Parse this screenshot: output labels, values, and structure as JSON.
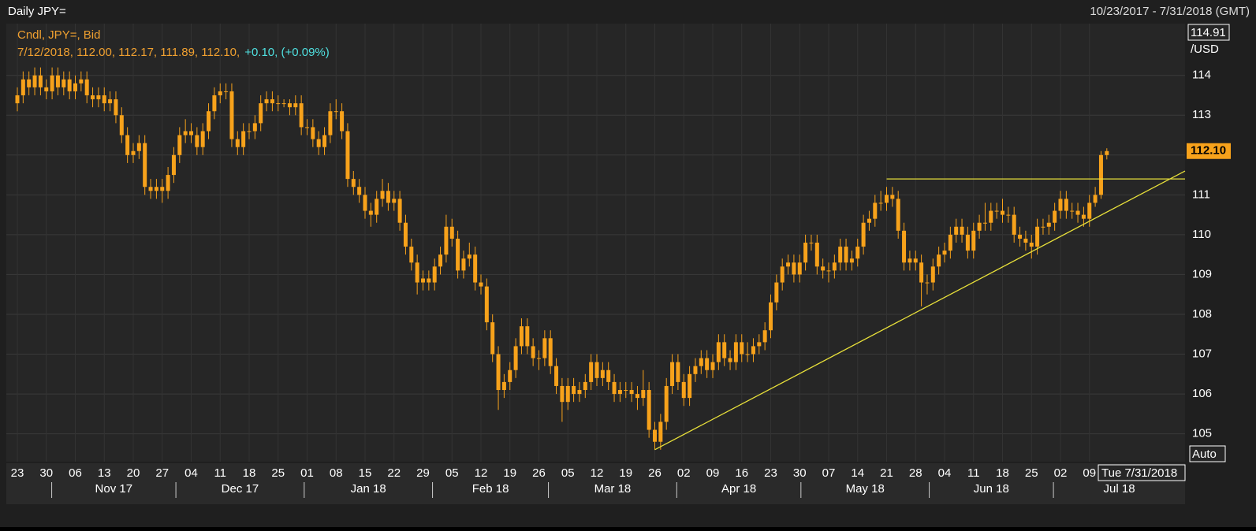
{
  "chart_data": {
    "type": "candlestick",
    "title": "Daily JPY=",
    "date_range": "10/23/2017 - 7/31/2018 (GMT)",
    "legend_title": "Cndl, JPY=, Bid",
    "legend_values": "7/12/2018, 112.00, 112.17, 111.89, 112.10,",
    "legend_change": "+0.10, (+0.09%)",
    "axis_top_label": "114.91",
    "axis_unit": "/USD",
    "last_price_label": "112.10",
    "scale_mode": "Auto",
    "cursor_date": "Tue 7/31/2018",
    "color": "#f7a21b",
    "ylim": [
      104.3,
      115.3
    ],
    "yticks": [
      105,
      106,
      107,
      108,
      109,
      110,
      111,
      112,
      113,
      114
    ],
    "grid": true,
    "categories": [
      "23",
      null,
      null,
      null,
      null,
      "30",
      null,
      null,
      null,
      null,
      "06",
      null,
      null,
      null,
      null,
      "13",
      null,
      null,
      null,
      null,
      "20",
      null,
      null,
      null,
      null,
      "27",
      null,
      null,
      null,
      null,
      "04",
      null,
      null,
      null,
      null,
      "11",
      null,
      null,
      null,
      null,
      "18",
      null,
      null,
      null,
      null,
      "25",
      null,
      null,
      null,
      null,
      "01",
      null,
      null,
      null,
      null,
      "08",
      null,
      null,
      null,
      null,
      "15",
      null,
      null,
      null,
      null,
      "22",
      null,
      null,
      null,
      null,
      "29",
      null,
      null,
      null,
      null,
      "05",
      null,
      null,
      null,
      null,
      "12",
      null,
      null,
      null,
      null,
      "19",
      null,
      null,
      null,
      null,
      "26",
      null,
      null,
      null,
      null,
      "05",
      null,
      null,
      null,
      null,
      "12",
      null,
      null,
      null,
      null,
      "19",
      null,
      null,
      null,
      null,
      "26",
      null,
      null,
      null,
      null,
      "02",
      null,
      null,
      null,
      null,
      "09",
      null,
      null,
      null,
      null,
      "16",
      null,
      null,
      null,
      null,
      "23",
      null,
      null,
      null,
      null,
      "30",
      null,
      null,
      null,
      null,
      "07",
      null,
      null,
      null,
      null,
      "14",
      null,
      null,
      null,
      null,
      "21",
      null,
      null,
      null,
      null,
      "28",
      null,
      null,
      null,
      null,
      "04",
      null,
      null,
      null,
      null,
      "11",
      null,
      null,
      null,
      null,
      "18",
      null,
      null,
      null,
      null,
      "25",
      null,
      null,
      null,
      null,
      "02",
      null,
      null,
      null,
      null,
      "09",
      null,
      null,
      null
    ],
    "months": [
      "Nov 17",
      "Dec 17",
      "Jan 18",
      "Feb 18",
      "Mar 18",
      "Apr 18",
      "May 18",
      "Jun 18",
      "Jul 18"
    ],
    "candles": [
      [
        113.3,
        113.7,
        113.1,
        113.5
      ],
      [
        113.5,
        114.1,
        113.3,
        113.9
      ],
      [
        113.9,
        114.1,
        113.5,
        113.7
      ],
      [
        113.7,
        114.2,
        113.5,
        114.0
      ],
      [
        114.0,
        114.2,
        113.5,
        113.7
      ],
      [
        113.7,
        113.9,
        113.4,
        113.6
      ],
      [
        113.6,
        114.2,
        113.4,
        114.0
      ],
      [
        114.0,
        114.2,
        113.5,
        113.7
      ],
      [
        113.7,
        114.1,
        113.5,
        113.9
      ],
      [
        113.9,
        114.1,
        113.4,
        113.6
      ],
      [
        113.6,
        114.0,
        113.4,
        113.8
      ],
      [
        113.8,
        114.1,
        113.6,
        113.9
      ],
      [
        113.9,
        114.1,
        113.3,
        113.5
      ],
      [
        113.5,
        113.7,
        113.2,
        113.4
      ],
      [
        113.4,
        113.7,
        113.2,
        113.5
      ],
      [
        113.5,
        113.7,
        113.1,
        113.3
      ],
      [
        113.3,
        113.6,
        113.1,
        113.4
      ],
      [
        113.4,
        113.6,
        112.8,
        113.0
      ],
      [
        113.0,
        113.2,
        112.3,
        112.5
      ],
      [
        112.5,
        112.7,
        111.8,
        112.0
      ],
      [
        112.0,
        112.3,
        111.8,
        112.1
      ],
      [
        112.1,
        112.5,
        111.9,
        112.3
      ],
      [
        112.3,
        112.5,
        111.0,
        111.2
      ],
      [
        111.2,
        111.4,
        110.9,
        111.1
      ],
      [
        111.1,
        111.4,
        110.9,
        111.2
      ],
      [
        111.2,
        111.4,
        110.8,
        111.1
      ],
      [
        111.1,
        111.7,
        110.9,
        111.5
      ],
      [
        111.5,
        112.2,
        111.3,
        112.0
      ],
      [
        112.0,
        112.7,
        111.8,
        112.5
      ],
      [
        112.5,
        112.9,
        112.3,
        112.6
      ],
      [
        112.6,
        112.8,
        112.3,
        112.5
      ],
      [
        112.5,
        112.7,
        112.0,
        112.2
      ],
      [
        112.2,
        112.8,
        112.0,
        112.6
      ],
      [
        112.6,
        113.3,
        112.4,
        113.1
      ],
      [
        113.1,
        113.7,
        112.9,
        113.5
      ],
      [
        113.5,
        113.8,
        113.3,
        113.6
      ],
      [
        113.6,
        113.8,
        113.4,
        113.6
      ],
      [
        113.6,
        113.8,
        112.2,
        112.4
      ],
      [
        112.4,
        112.6,
        112.0,
        112.2
      ],
      [
        112.2,
        112.8,
        112.0,
        112.6
      ],
      [
        112.6,
        112.8,
        112.4,
        112.6
      ],
      [
        112.6,
        113.0,
        112.4,
        112.8
      ],
      [
        112.8,
        113.5,
        112.6,
        113.3
      ],
      [
        113.3,
        113.6,
        113.1,
        113.4
      ],
      [
        113.4,
        113.6,
        113.1,
        113.3
      ],
      [
        113.3,
        113.5,
        113.1,
        113.3
      ],
      [
        113.3,
        113.4,
        113.2,
        113.3
      ],
      [
        113.3,
        113.4,
        113.0,
        113.2
      ],
      [
        113.2,
        113.5,
        113.0,
        113.3
      ],
      [
        113.3,
        113.5,
        112.5,
        112.7
      ],
      [
        112.7,
        112.9,
        112.5,
        112.7
      ],
      [
        112.7,
        112.9,
        112.2,
        112.4
      ],
      [
        112.4,
        112.6,
        112.0,
        112.2
      ],
      [
        112.2,
        112.7,
        112.0,
        112.5
      ],
      [
        112.5,
        113.3,
        112.3,
        113.1
      ],
      [
        113.1,
        113.4,
        112.9,
        113.1
      ],
      [
        113.1,
        113.3,
        112.4,
        112.6
      ],
      [
        112.6,
        112.8,
        111.2,
        111.4
      ],
      [
        111.4,
        111.6,
        111.0,
        111.2
      ],
      [
        111.2,
        111.4,
        110.8,
        111.0
      ],
      [
        111.0,
        111.2,
        110.4,
        110.6
      ],
      [
        110.6,
        110.8,
        110.2,
        110.5
      ],
      [
        110.5,
        111.1,
        110.3,
        110.9
      ],
      [
        110.9,
        111.4,
        110.7,
        111.1
      ],
      [
        111.1,
        111.3,
        110.6,
        110.8
      ],
      [
        110.8,
        111.1,
        110.6,
        110.9
      ],
      [
        110.9,
        111.1,
        110.1,
        110.3
      ],
      [
        110.3,
        110.5,
        109.5,
        109.7
      ],
      [
        109.7,
        109.9,
        109.1,
        109.3
      ],
      [
        109.3,
        109.5,
        108.5,
        108.8
      ],
      [
        108.8,
        109.1,
        108.6,
        108.9
      ],
      [
        108.9,
        109.1,
        108.6,
        108.8
      ],
      [
        108.8,
        109.4,
        108.6,
        109.2
      ],
      [
        109.2,
        109.7,
        109.0,
        109.5
      ],
      [
        109.5,
        110.5,
        109.3,
        110.2
      ],
      [
        110.2,
        110.4,
        109.7,
        109.9
      ],
      [
        109.9,
        110.1,
        108.9,
        109.1
      ],
      [
        109.1,
        109.6,
        108.9,
        109.4
      ],
      [
        109.4,
        109.8,
        109.2,
        109.5
      ],
      [
        109.5,
        109.7,
        108.6,
        108.8
      ],
      [
        108.8,
        109.0,
        108.5,
        108.7
      ],
      [
        108.7,
        108.9,
        107.6,
        107.8
      ],
      [
        107.8,
        108.0,
        106.8,
        107.0
      ],
      [
        107.0,
        107.2,
        105.6,
        106.1
      ],
      [
        106.1,
        106.5,
        105.9,
        106.3
      ],
      [
        106.3,
        106.8,
        106.1,
        106.6
      ],
      [
        106.6,
        107.4,
        106.4,
        107.2
      ],
      [
        107.2,
        107.9,
        107.0,
        107.7
      ],
      [
        107.7,
        107.9,
        107.0,
        107.2
      ],
      [
        107.2,
        107.4,
        106.7,
        106.9
      ],
      [
        106.9,
        107.1,
        106.6,
        106.9
      ],
      [
        106.9,
        107.6,
        106.7,
        107.4
      ],
      [
        107.4,
        107.6,
        106.5,
        106.7
      ],
      [
        106.7,
        106.9,
        106.0,
        106.2
      ],
      [
        106.2,
        106.4,
        105.3,
        105.8
      ],
      [
        105.8,
        106.4,
        105.6,
        106.2
      ],
      [
        106.2,
        106.4,
        105.8,
        106.0
      ],
      [
        106.0,
        106.3,
        105.8,
        106.1
      ],
      [
        106.1,
        106.5,
        105.9,
        106.3
      ],
      [
        106.3,
        107.0,
        106.1,
        106.8
      ],
      [
        106.8,
        107.0,
        106.2,
        106.4
      ],
      [
        106.4,
        106.8,
        106.2,
        106.6
      ],
      [
        106.6,
        106.8,
        106.1,
        106.3
      ],
      [
        106.3,
        106.5,
        105.8,
        106.0
      ],
      [
        106.0,
        106.3,
        105.8,
        106.1
      ],
      [
        106.1,
        106.3,
        105.9,
        106.1
      ],
      [
        106.1,
        106.3,
        105.8,
        106.0
      ],
      [
        106.0,
        106.2,
        105.6,
        105.9
      ],
      [
        105.9,
        106.6,
        105.7,
        106.1
      ],
      [
        106.1,
        106.3,
        104.9,
        105.1
      ],
      [
        105.1,
        105.3,
        104.6,
        104.8
      ],
      [
        104.8,
        105.5,
        104.6,
        105.3
      ],
      [
        105.3,
        106.4,
        105.1,
        106.2
      ],
      [
        106.2,
        107.0,
        106.0,
        106.8
      ],
      [
        106.8,
        107.0,
        106.1,
        106.3
      ],
      [
        106.3,
        106.5,
        105.7,
        105.9
      ],
      [
        105.9,
        106.7,
        105.7,
        106.5
      ],
      [
        106.5,
        106.9,
        106.3,
        106.7
      ],
      [
        106.7,
        107.1,
        106.5,
        106.9
      ],
      [
        106.9,
        107.1,
        106.4,
        106.6
      ],
      [
        106.6,
        107.0,
        106.4,
        106.8
      ],
      [
        106.8,
        107.5,
        106.6,
        107.3
      ],
      [
        107.3,
        107.5,
        106.7,
        106.9
      ],
      [
        106.9,
        107.1,
        106.6,
        106.8
      ],
      [
        106.8,
        107.5,
        106.6,
        107.3
      ],
      [
        107.3,
        107.5,
        106.8,
        107.0
      ],
      [
        107.0,
        107.3,
        106.8,
        107.0
      ],
      [
        107.0,
        107.4,
        106.8,
        107.2
      ],
      [
        107.2,
        107.5,
        107.0,
        107.3
      ],
      [
        107.3,
        107.8,
        107.1,
        107.6
      ],
      [
        107.6,
        108.5,
        107.4,
        108.3
      ],
      [
        108.3,
        109.0,
        108.1,
        108.8
      ],
      [
        108.8,
        109.4,
        108.6,
        109.2
      ],
      [
        109.2,
        109.5,
        109.0,
        109.3
      ],
      [
        109.3,
        109.5,
        108.8,
        109.0
      ],
      [
        109.0,
        109.5,
        108.8,
        109.3
      ],
      [
        109.3,
        110.0,
        109.1,
        109.8
      ],
      [
        109.8,
        110.0,
        109.6,
        109.8
      ],
      [
        109.8,
        110.0,
        109.0,
        109.2
      ],
      [
        109.2,
        109.4,
        108.9,
        109.1
      ],
      [
        109.1,
        109.3,
        108.8,
        109.1
      ],
      [
        109.1,
        109.5,
        108.9,
        109.3
      ],
      [
        109.3,
        109.9,
        109.1,
        109.7
      ],
      [
        109.7,
        109.9,
        109.1,
        109.3
      ],
      [
        109.3,
        109.6,
        109.1,
        109.4
      ],
      [
        109.4,
        109.9,
        109.2,
        109.7
      ],
      [
        109.7,
        110.5,
        109.5,
        110.3
      ],
      [
        110.3,
        110.6,
        110.1,
        110.4
      ],
      [
        110.4,
        111.0,
        110.2,
        110.8
      ],
      [
        110.8,
        111.1,
        110.6,
        110.8
      ],
      [
        110.8,
        111.2,
        110.6,
        111.0
      ],
      [
        111.0,
        111.2,
        110.7,
        110.9
      ],
      [
        110.9,
        111.1,
        109.9,
        110.1
      ],
      [
        110.1,
        110.3,
        109.1,
        109.3
      ],
      [
        109.3,
        109.6,
        109.1,
        109.4
      ],
      [
        109.4,
        109.6,
        109.1,
        109.3
      ],
      [
        109.3,
        109.5,
        108.2,
        108.8
      ],
      [
        108.8,
        109.0,
        108.5,
        108.8
      ],
      [
        108.8,
        109.4,
        108.6,
        109.2
      ],
      [
        109.2,
        109.7,
        109.0,
        109.5
      ],
      [
        109.5,
        109.8,
        109.3,
        109.6
      ],
      [
        109.6,
        110.2,
        109.4,
        110.0
      ],
      [
        110.0,
        110.4,
        109.8,
        110.2
      ],
      [
        110.2,
        110.4,
        109.8,
        110.0
      ],
      [
        110.0,
        110.2,
        109.4,
        109.6
      ],
      [
        109.6,
        110.3,
        109.4,
        110.1
      ],
      [
        110.1,
        110.5,
        109.9,
        110.3
      ],
      [
        110.3,
        110.8,
        110.1,
        110.3
      ],
      [
        110.3,
        110.8,
        110.1,
        110.6
      ],
      [
        110.6,
        110.8,
        110.4,
        110.6
      ],
      [
        110.6,
        110.9,
        110.3,
        110.5
      ],
      [
        110.5,
        110.7,
        110.3,
        110.5
      ],
      [
        110.5,
        110.7,
        109.8,
        110.0
      ],
      [
        110.0,
        110.2,
        109.7,
        109.9
      ],
      [
        109.9,
        110.1,
        109.6,
        109.8
      ],
      [
        109.8,
        110.0,
        109.4,
        109.7
      ],
      [
        109.7,
        110.4,
        109.5,
        110.2
      ],
      [
        110.2,
        110.4,
        110.0,
        110.2
      ],
      [
        110.2,
        110.5,
        110.0,
        110.3
      ],
      [
        110.3,
        110.8,
        110.1,
        110.6
      ],
      [
        110.6,
        111.1,
        110.4,
        110.9
      ],
      [
        110.9,
        111.1,
        110.4,
        110.6
      ],
      [
        110.6,
        110.8,
        110.4,
        110.6
      ],
      [
        110.6,
        110.8,
        110.3,
        110.5
      ],
      [
        110.5,
        110.7,
        110.2,
        110.4
      ],
      [
        110.4,
        111.0,
        110.2,
        110.8
      ],
      [
        110.8,
        111.2,
        110.7,
        111.0
      ],
      [
        111.0,
        112.1,
        110.9,
        112.0
      ],
      [
        112.0,
        112.17,
        111.89,
        112.1
      ]
    ],
    "annotations": [
      {
        "type": "hline",
        "value": 111.4,
        "color": "#e8e03a"
      },
      {
        "type": "trendline",
        "start": 104.6,
        "end": 111.6,
        "color": "#e8e03a"
      }
    ]
  }
}
